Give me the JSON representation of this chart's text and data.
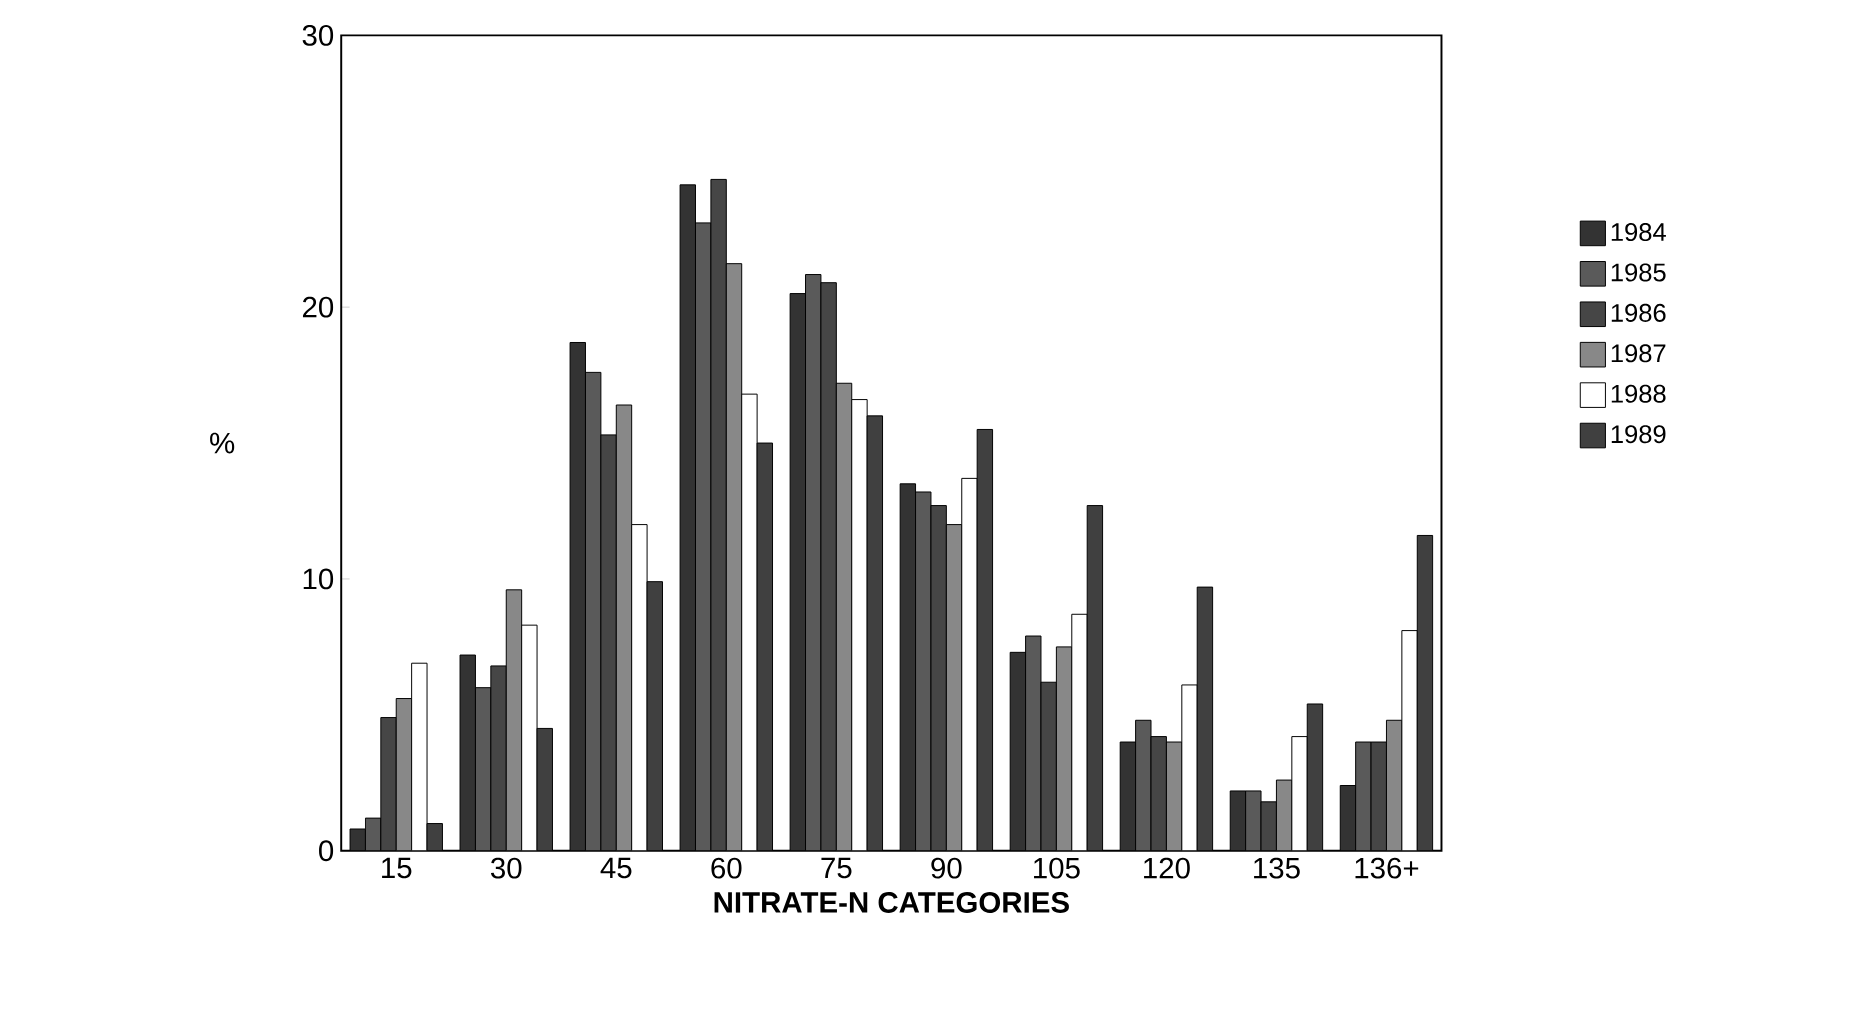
{
  "chart_data": {
    "type": "bar",
    "xlabel": "NITRATE-N  CATEGORIES",
    "ylabel": "%",
    "categories": [
      "15",
      "30",
      "45",
      "60",
      "75",
      "90",
      "105",
      "120",
      "135",
      "136+"
    ],
    "series": [
      {
        "name": "1984",
        "color": "#333333",
        "values": [
          0.8,
          7.2,
          18.7,
          24.5,
          20.5,
          13.5,
          7.3,
          4.0,
          2.2,
          2.4
        ]
      },
      {
        "name": "1985",
        "color": "#5a5a5a",
        "values": [
          1.2,
          6.0,
          17.6,
          23.1,
          21.2,
          13.2,
          7.9,
          4.8,
          2.2,
          4.0
        ]
      },
      {
        "name": "1986",
        "color": "#464646",
        "values": [
          4.9,
          6.8,
          15.3,
          24.7,
          20.9,
          12.7,
          6.2,
          4.2,
          1.8,
          4.0
        ]
      },
      {
        "name": "1987",
        "color": "#888888",
        "values": [
          5.6,
          9.6,
          16.4,
          21.6,
          17.2,
          12.0,
          7.5,
          4.0,
          2.6,
          4.8
        ]
      },
      {
        "name": "1988",
        "color": "#ffffff",
        "values": [
          6.9,
          8.3,
          12.0,
          16.8,
          16.6,
          13.7,
          8.7,
          6.1,
          4.2,
          8.1
        ]
      },
      {
        "name": "1989",
        "color": "#404040",
        "values": [
          1.0,
          4.5,
          9.9,
          15.0,
          16.0,
          15.5,
          12.7,
          9.7,
          5.4,
          11.6
        ]
      }
    ],
    "ylim": [
      0,
      30
    ],
    "yticks": [
      0,
      10,
      20,
      30
    ],
    "legend": "right"
  }
}
